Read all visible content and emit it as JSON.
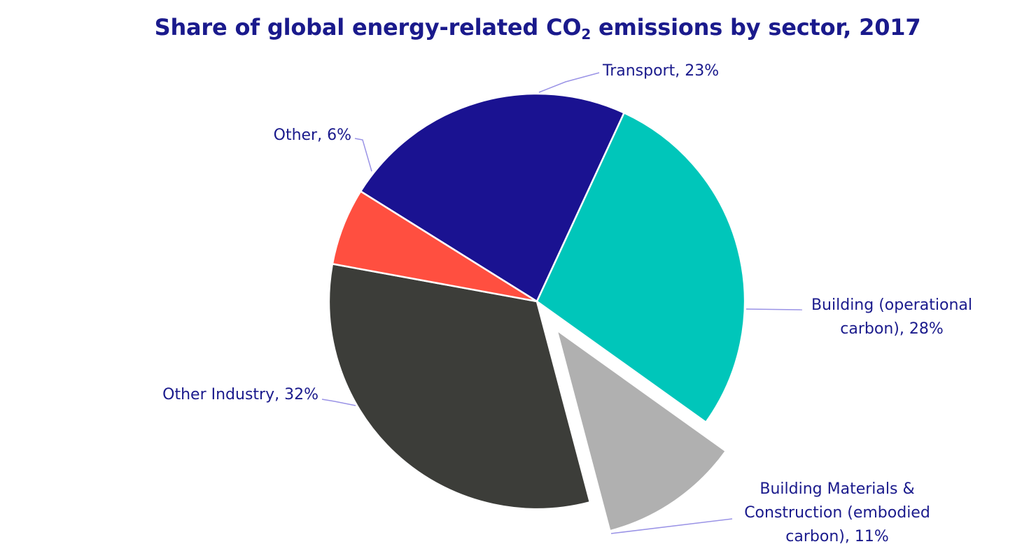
{
  "chart_data": {
    "type": "pie",
    "title_main": "Share of global energy-related CO",
    "title_sub": "2",
    "title_rest": " emissions by sector, 2017",
    "slices": [
      {
        "name": "Transport",
        "value": 23,
        "color": "#1a1291",
        "label_lines": [
          "Transport, 23%"
        ]
      },
      {
        "name": "Building (operational carbon)",
        "value": 28,
        "color": "#00c6ba",
        "label_lines": [
          "Building (operational",
          "carbon), 28%"
        ]
      },
      {
        "name": "Building Materials & Construction (embodied carbon)",
        "value": 11,
        "color": "#b0b0b0",
        "exploded": true,
        "label_lines": [
          "Building Materials &",
          "Construction (embodied",
          "carbon), 11%"
        ]
      },
      {
        "name": "Other Industry",
        "value": 32,
        "color": "#3c3d39",
        "label_lines": [
          "Other Industry, 32%"
        ]
      },
      {
        "name": "Other",
        "value": 6,
        "color": "#ff4f40",
        "label_lines": [
          "Other, 6%"
        ]
      }
    ]
  }
}
